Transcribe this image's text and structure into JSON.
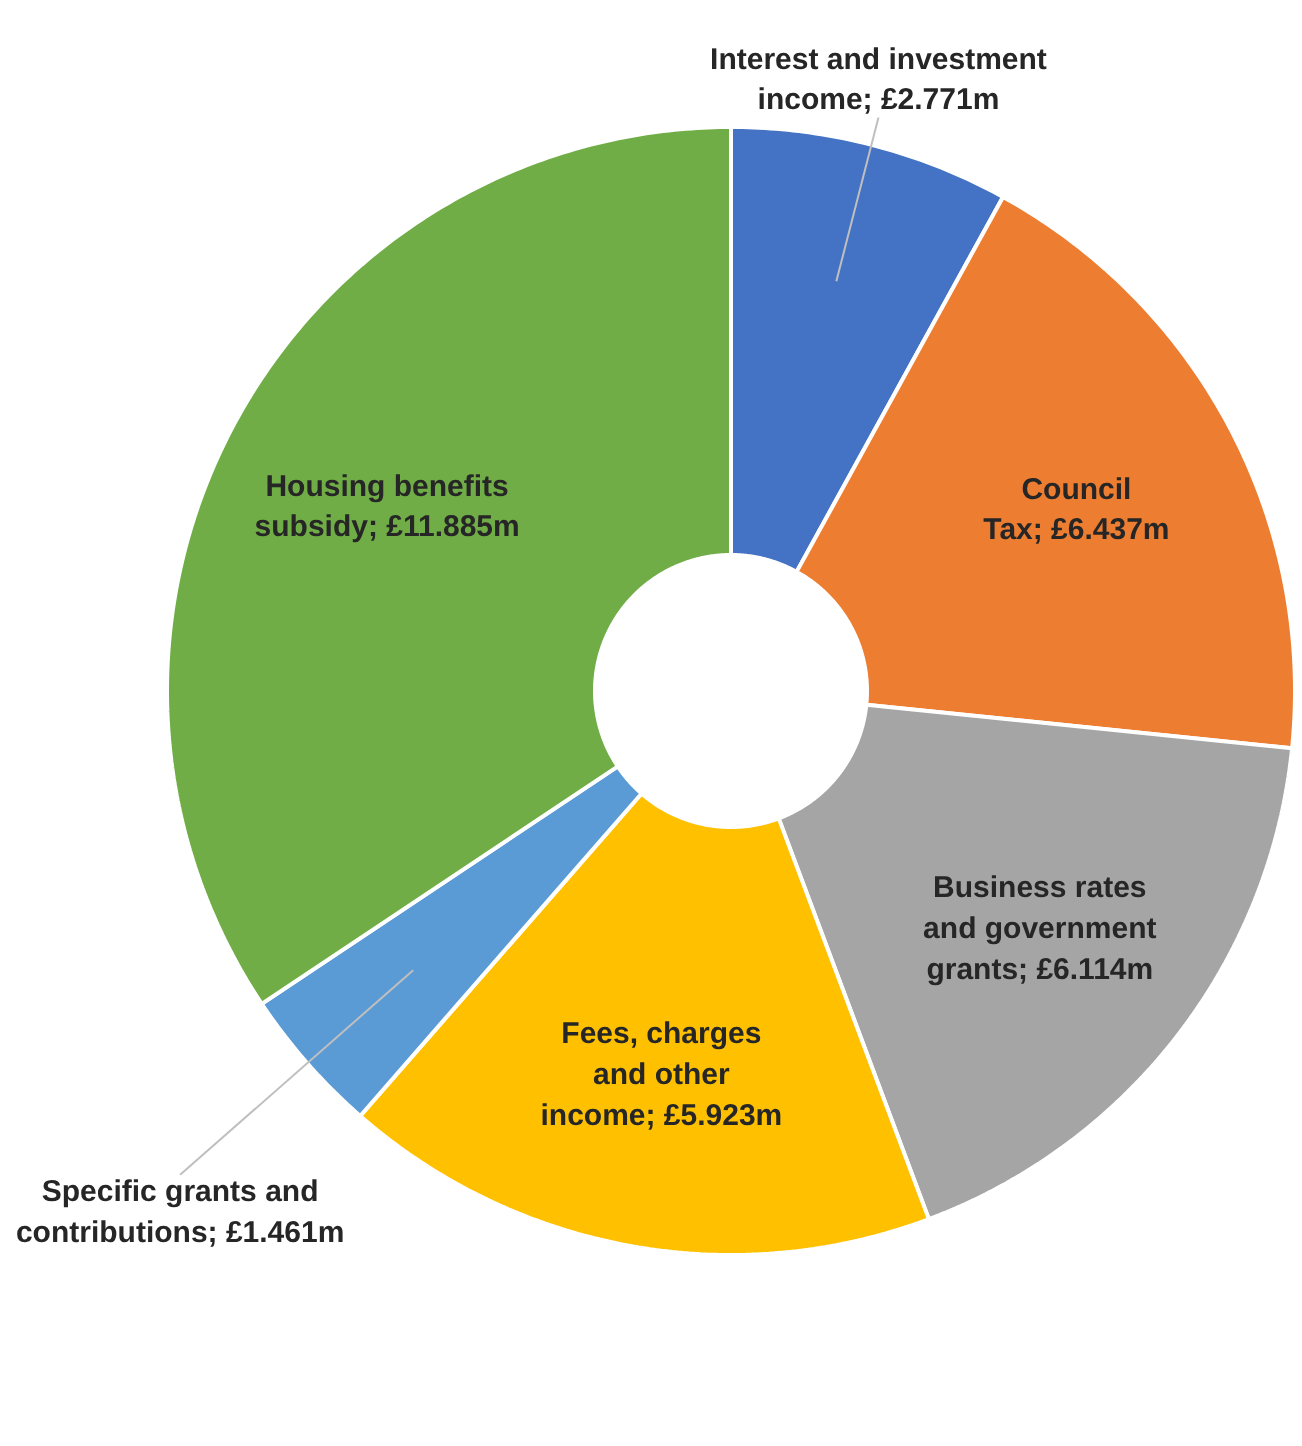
{
  "chart_data": {
    "type": "donut",
    "categories": [
      "Interest and investment income",
      "Council Tax",
      "Business rates and government grants",
      "Fees, charges and other income",
      "Specific grants and contributions",
      "Housing benefits subsidy"
    ],
    "values": [
      2.771,
      6.437,
      6.114,
      5.923,
      1.461,
      11.885
    ],
    "colors": [
      "#4472c4",
      "#ed7d31",
      "#a5a5a5",
      "#ffc000",
      "#5b9bd5",
      "#70ad47"
    ],
    "value_labels": [
      "£2.771m",
      "£6.437m",
      "£6.114m",
      "£5.923m",
      "£1.461m",
      "£11.885m"
    ]
  }
}
